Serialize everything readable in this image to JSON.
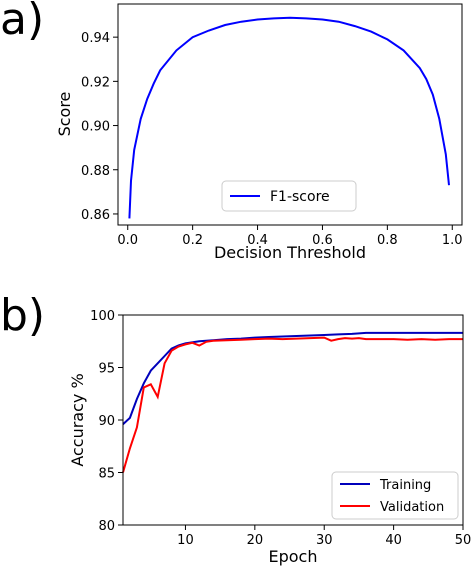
{
  "panels": {
    "a": {
      "label": "a)"
    },
    "b": {
      "label": "b)"
    }
  },
  "chart_data": [
    {
      "type": "line",
      "panel": "a)",
      "xlabel": "Decision Threshold",
      "ylabel": "Score",
      "xlim": [
        -0.03,
        1.03
      ],
      "ylim": [
        0.855,
        0.955
      ],
      "xticks": [
        "0.0",
        "0.2",
        "0.4",
        "0.6",
        "0.8",
        "1.0"
      ],
      "yticks": [
        "0.86",
        "0.88",
        "0.90",
        "0.92",
        "0.94"
      ],
      "legend_position": "lower-center",
      "grid": false,
      "series": [
        {
          "name": "F1-score",
          "color": "#0000ff",
          "x": [
            0.005,
            0.01,
            0.02,
            0.04,
            0.06,
            0.08,
            0.1,
            0.15,
            0.2,
            0.25,
            0.3,
            0.35,
            0.4,
            0.45,
            0.5,
            0.55,
            0.6,
            0.65,
            0.7,
            0.75,
            0.8,
            0.85,
            0.9,
            0.92,
            0.94,
            0.96,
            0.98,
            0.99
          ],
          "y": [
            0.858,
            0.875,
            0.889,
            0.903,
            0.912,
            0.919,
            0.925,
            0.934,
            0.94,
            0.943,
            0.9455,
            0.947,
            0.948,
            0.9485,
            0.9488,
            0.9485,
            0.948,
            0.947,
            0.945,
            0.9425,
            0.939,
            0.934,
            0.926,
            0.921,
            0.914,
            0.903,
            0.887,
            0.873
          ]
        }
      ]
    },
    {
      "type": "line",
      "panel": "b)",
      "xlabel": "Epoch",
      "ylabel": "Accuracy %",
      "xlim": [
        1,
        50
      ],
      "ylim": [
        80,
        100
      ],
      "xticks": [
        "10",
        "20",
        "30",
        "40",
        "50"
      ],
      "yticks": [
        "80",
        "85",
        "90",
        "95",
        "100"
      ],
      "legend_position": "lower-right",
      "grid": false,
      "series": [
        {
          "name": "Training",
          "color": "#0000bb",
          "x": [
            1,
            2,
            3,
            4,
            5,
            6,
            7,
            8,
            9,
            10,
            12,
            14,
            16,
            18,
            20,
            22,
            24,
            26,
            28,
            30,
            32,
            34,
            36,
            38,
            40,
            42,
            44,
            46,
            48,
            50
          ],
          "y": [
            89.6,
            90.2,
            92.0,
            93.5,
            94.7,
            95.4,
            96.1,
            96.8,
            97.1,
            97.3,
            97.5,
            97.6,
            97.7,
            97.75,
            97.85,
            97.9,
            97.95,
            98.0,
            98.05,
            98.1,
            98.15,
            98.2,
            98.3,
            98.3,
            98.3,
            98.3,
            98.3,
            98.3,
            98.3,
            98.3
          ]
        },
        {
          "name": "Validation",
          "color": "#ff0000",
          "x": [
            1,
            2,
            3,
            4,
            5,
            6,
            7,
            8,
            9,
            10,
            11,
            12,
            13,
            14,
            16,
            18,
            20,
            22,
            24,
            26,
            28,
            30,
            31,
            32,
            33,
            34,
            35,
            36,
            38,
            40,
            42,
            44,
            46,
            48,
            50
          ],
          "y": [
            85.0,
            87.3,
            89.3,
            93.1,
            93.4,
            92.2,
            95.4,
            96.6,
            97.0,
            97.2,
            97.35,
            97.1,
            97.45,
            97.55,
            97.6,
            97.65,
            97.7,
            97.75,
            97.7,
            97.75,
            97.8,
            97.85,
            97.55,
            97.7,
            97.8,
            97.75,
            97.8,
            97.7,
            97.7,
            97.7,
            97.65,
            97.7,
            97.65,
            97.7,
            97.7
          ]
        }
      ]
    }
  ]
}
